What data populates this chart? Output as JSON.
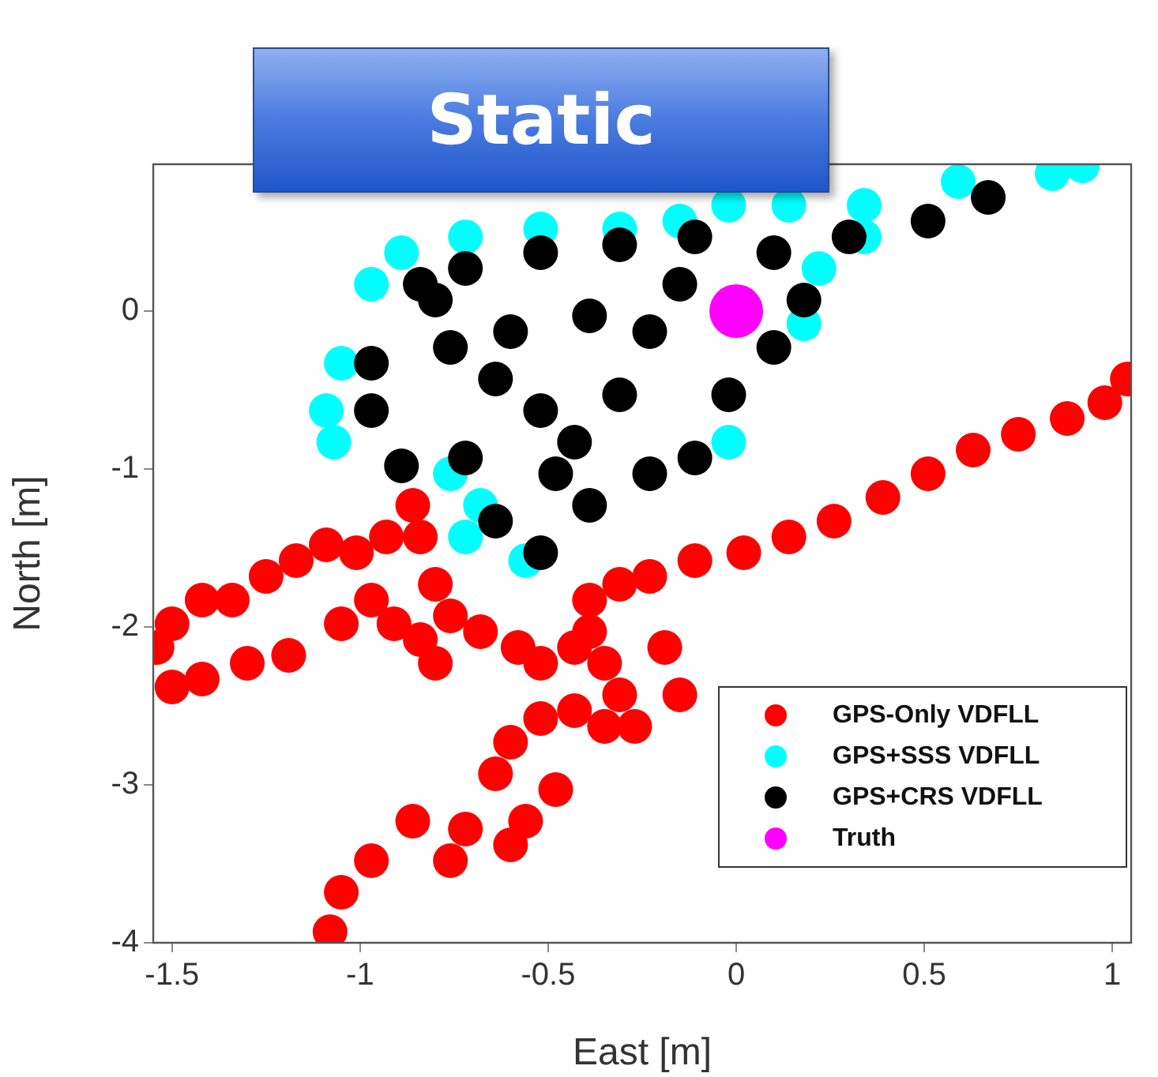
{
  "chart_data": {
    "type": "scatter",
    "title": "Static",
    "xlabel": "East [m]",
    "ylabel": "North [m]",
    "xlim": [
      -1.55,
      1.05
    ],
    "xticks": [
      -1.5,
      -1,
      -0.5,
      0,
      0.5,
      1
    ],
    "ylim": [
      -4,
      0.93
    ],
    "yticks": [
      -4,
      -3,
      -2,
      -1,
      0
    ],
    "grid": false,
    "legend": "bottom right",
    "marker": "circle",
    "series": [
      {
        "name": "GPS-Only VDFLL",
        "color": "#ff0000",
        "x": [
          -1.08,
          -1.05,
          -0.97,
          -0.86,
          -0.72,
          -0.6,
          -0.56,
          -0.64,
          -0.6,
          -0.52,
          -0.43,
          -0.35,
          -0.31,
          -0.35,
          -0.43,
          -0.52,
          -0.58,
          -0.68,
          -0.76,
          -0.8,
          -0.84,
          -0.86,
          -0.93,
          -1.01,
          -1.09,
          -1.17,
          -1.25,
          -1.34,
          -1.42,
          -1.5,
          -1.54,
          -1.5,
          -1.42,
          -1.3,
          -1.19,
          -1.05,
          -0.97,
          -0.91,
          -0.84,
          -0.8,
          -0.39,
          -0.31,
          -0.23,
          -0.11,
          0.02,
          0.14,
          0.26,
          0.39,
          0.51,
          0.63,
          0.75,
          0.88,
          0.98,
          1.04,
          -0.19,
          -0.15,
          -0.27,
          -0.39,
          -0.48,
          -0.76
        ],
        "values": [
          -3.93,
          -3.68,
          -3.48,
          -3.23,
          -3.28,
          -3.38,
          -3.23,
          -2.93,
          -2.73,
          -2.58,
          -2.53,
          -2.63,
          -2.43,
          -2.23,
          -2.13,
          -2.23,
          -2.13,
          -2.03,
          -1.93,
          -1.73,
          -1.43,
          -1.23,
          -1.43,
          -1.53,
          -1.48,
          -1.58,
          -1.68,
          -1.83,
          -1.83,
          -1.98,
          -2.13,
          -2.38,
          -2.33,
          -2.23,
          -2.18,
          -1.98,
          -1.83,
          -1.98,
          -2.08,
          -2.23,
          -1.83,
          -1.73,
          -1.68,
          -1.58,
          -1.53,
          -1.43,
          -1.33,
          -1.18,
          -1.03,
          -0.88,
          -0.78,
          -0.68,
          -0.58,
          -0.43,
          -2.13,
          -2.43,
          -2.63,
          -2.03,
          -3.03,
          -3.48
        ]
      },
      {
        "name": "GPS+SSS VDFLL",
        "color": "#00ffff",
        "x": [
          -0.97,
          -0.89,
          -0.72,
          -0.52,
          -0.31,
          -0.15,
          -0.02,
          0.14,
          0.34,
          0.59,
          0.84,
          0.92,
          0.51,
          0.34,
          0.22,
          0.18,
          -1.05,
          -1.09,
          -1.07,
          -0.72,
          -0.56,
          -0.68,
          -0.02,
          -0.76
        ],
        "values": [
          0.17,
          0.37,
          0.47,
          0.52,
          0.52,
          0.57,
          0.67,
          0.67,
          0.67,
          0.82,
          0.87,
          0.92,
          null,
          0.47,
          0.27,
          -0.08,
          -0.33,
          -0.63,
          -0.83,
          -1.43,
          -1.58,
          -1.23,
          -0.83,
          -1.03
        ]
      },
      {
        "name": "GPS+CRS VDFLL",
        "color": "#000000",
        "x": [
          -0.84,
          -0.72,
          -0.52,
          -0.31,
          -0.11,
          0.1,
          0.3,
          0.51,
          0.67,
          0.18,
          0.1,
          -0.02,
          -0.11,
          -0.23,
          -0.39,
          -0.52,
          -0.64,
          -0.72,
          -0.89,
          -0.97,
          -0.97,
          -0.76,
          -0.6,
          -0.39,
          -0.23,
          -0.15,
          -0.31,
          -0.52,
          -0.64,
          -0.43,
          -0.8,
          -0.48
        ],
        "values": [
          0.17,
          0.27,
          0.37,
          0.42,
          0.47,
          0.37,
          0.47,
          0.57,
          0.72,
          0.07,
          -0.23,
          -0.53,
          -0.93,
          -1.03,
          -1.23,
          -1.53,
          -1.33,
          -0.93,
          -0.98,
          -0.63,
          -0.33,
          -0.23,
          -0.13,
          -0.03,
          -0.13,
          0.17,
          -0.53,
          -0.63,
          -0.43,
          -0.83,
          0.07,
          -1.03
        ]
      },
      {
        "name": "Truth",
        "color": "#ff00ff",
        "x": [
          0
        ],
        "values": [
          0
        ]
      }
    ]
  }
}
